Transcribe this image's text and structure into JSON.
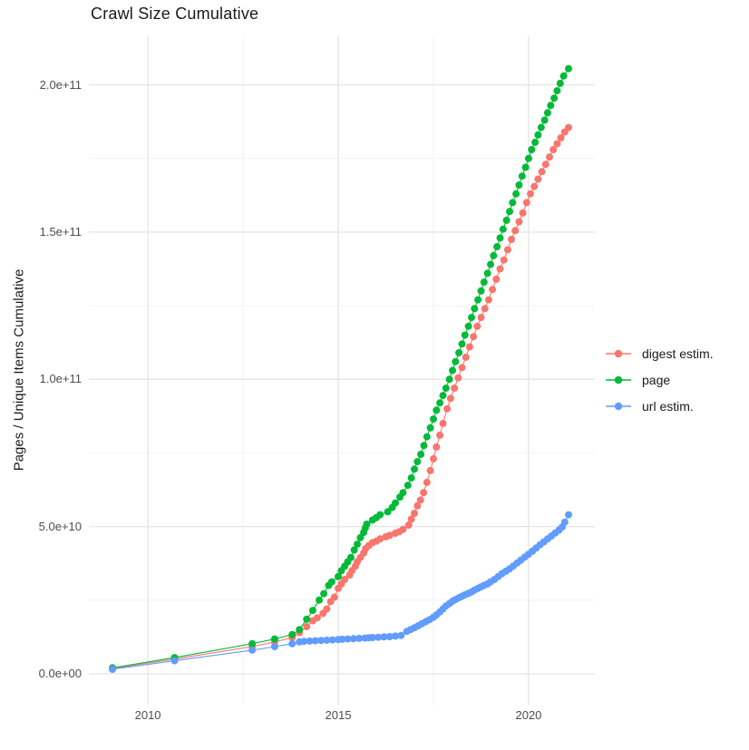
{
  "chart_data": {
    "type": "scatter",
    "title": "Crawl Size Cumulative",
    "xlabel": "",
    "ylabel": "Pages / Unique Items Cumulative",
    "y_unit_multiplier": 10000000000.0,
    "x_domain": [
      2008.45,
      2021.74
    ],
    "y_domain": [
      -1.05,
      21.65
    ],
    "x_ticks": [
      {
        "v": 2010,
        "label": "2010"
      },
      {
        "v": 2015,
        "label": "2015"
      },
      {
        "v": 2020,
        "label": "2020"
      }
    ],
    "x_minor_ticks": [
      2012.5,
      2017.5
    ],
    "y_ticks": [
      {
        "v": 0,
        "label": "0.0e+00"
      },
      {
        "v": 5,
        "label": "5.0e+10"
      },
      {
        "v": 10,
        "label": "1.0e+11"
      },
      {
        "v": 15,
        "label": "1.5e+11"
      },
      {
        "v": 20,
        "label": "2.0e+11"
      }
    ],
    "y_minor_ticks": [
      2.5,
      7.5,
      12.5,
      17.5
    ],
    "grid": {
      "on": true,
      "major_color": "#E6E6E6",
      "minor_color": "#F2F2F2",
      "background": "#FFFFFF"
    },
    "legend_position": "right",
    "series": [
      {
        "name": "digest estim.",
        "color": "#F8766D",
        "points": [
          [
            2009.07,
            0.18
          ],
          [
            2010.7,
            0.5
          ],
          [
            2012.74,
            0.92
          ],
          [
            2013.33,
            1.08
          ],
          [
            2013.79,
            1.23
          ],
          [
            2013.98,
            1.4
          ],
          [
            2014.17,
            1.6
          ],
          [
            2014.33,
            1.8
          ],
          [
            2014.45,
            1.9
          ],
          [
            2014.6,
            2.05
          ],
          [
            2014.7,
            2.2
          ],
          [
            2014.8,
            2.45
          ],
          [
            2014.9,
            2.6
          ],
          [
            2015.0,
            2.9
          ],
          [
            2015.08,
            3.05
          ],
          [
            2015.17,
            3.2
          ],
          [
            2015.3,
            3.35
          ],
          [
            2015.36,
            3.5
          ],
          [
            2015.45,
            3.65
          ],
          [
            2015.5,
            3.8
          ],
          [
            2015.58,
            3.95
          ],
          [
            2015.67,
            4.1
          ],
          [
            2015.72,
            4.25
          ],
          [
            2015.8,
            4.35
          ],
          [
            2015.9,
            4.45
          ],
          [
            2016.0,
            4.5
          ],
          [
            2016.1,
            4.58
          ],
          [
            2016.25,
            4.65
          ],
          [
            2016.35,
            4.7
          ],
          [
            2016.5,
            4.77
          ],
          [
            2016.6,
            4.82
          ],
          [
            2016.7,
            4.9
          ],
          [
            2016.85,
            5.05
          ],
          [
            2016.92,
            5.25
          ],
          [
            2017.0,
            5.45
          ],
          [
            2017.08,
            5.7
          ],
          [
            2017.16,
            5.9
          ],
          [
            2017.24,
            6.15
          ],
          [
            2017.33,
            6.5
          ],
          [
            2017.42,
            6.9
          ],
          [
            2017.5,
            7.3
          ],
          [
            2017.58,
            7.7
          ],
          [
            2017.67,
            8.1
          ],
          [
            2017.75,
            8.5
          ],
          [
            2017.86,
            9.0
          ],
          [
            2017.95,
            9.35
          ],
          [
            2018.05,
            9.7
          ],
          [
            2018.15,
            10.05
          ],
          [
            2018.25,
            10.4
          ],
          [
            2018.35,
            10.75
          ],
          [
            2018.45,
            11.1
          ],
          [
            2018.55,
            11.45
          ],
          [
            2018.65,
            11.8
          ],
          [
            2018.75,
            12.1
          ],
          [
            2018.85,
            12.4
          ],
          [
            2018.95,
            12.7
          ],
          [
            2019.05,
            13.05
          ],
          [
            2019.15,
            13.4
          ],
          [
            2019.25,
            13.75
          ],
          [
            2019.35,
            14.05
          ],
          [
            2019.45,
            14.4
          ],
          [
            2019.55,
            14.75
          ],
          [
            2019.65,
            15.05
          ],
          [
            2019.75,
            15.35
          ],
          [
            2019.85,
            15.65
          ],
          [
            2019.95,
            16.0
          ],
          [
            2020.05,
            16.3
          ],
          [
            2020.15,
            16.55
          ],
          [
            2020.25,
            16.8
          ],
          [
            2020.35,
            17.05
          ],
          [
            2020.45,
            17.3
          ],
          [
            2020.55,
            17.55
          ],
          [
            2020.65,
            17.8
          ],
          [
            2020.75,
            18.0
          ],
          [
            2020.85,
            18.2
          ],
          [
            2020.95,
            18.4
          ],
          [
            2021.05,
            18.55
          ]
        ]
      },
      {
        "name": "page",
        "color": "#00BA38",
        "points": [
          [
            2009.07,
            0.2
          ],
          [
            2010.7,
            0.55
          ],
          [
            2012.74,
            1.02
          ],
          [
            2013.33,
            1.18
          ],
          [
            2013.79,
            1.33
          ],
          [
            2013.98,
            1.5
          ],
          [
            2014.17,
            1.85
          ],
          [
            2014.33,
            2.15
          ],
          [
            2014.5,
            2.5
          ],
          [
            2014.62,
            2.72
          ],
          [
            2014.75,
            3.0
          ],
          [
            2014.83,
            3.12
          ],
          [
            2015.0,
            3.3
          ],
          [
            2015.08,
            3.5
          ],
          [
            2015.17,
            3.65
          ],
          [
            2015.25,
            3.8
          ],
          [
            2015.33,
            3.95
          ],
          [
            2015.42,
            4.2
          ],
          [
            2015.5,
            4.4
          ],
          [
            2015.58,
            4.62
          ],
          [
            2015.67,
            4.8
          ],
          [
            2015.71,
            4.95
          ],
          [
            2015.75,
            5.08
          ],
          [
            2015.9,
            5.22
          ],
          [
            2016.0,
            5.3
          ],
          [
            2016.1,
            5.4
          ],
          [
            2016.3,
            5.5
          ],
          [
            2016.42,
            5.65
          ],
          [
            2016.5,
            5.8
          ],
          [
            2016.62,
            6.0
          ],
          [
            2016.7,
            6.15
          ],
          [
            2016.83,
            6.4
          ],
          [
            2016.92,
            6.65
          ],
          [
            2017.0,
            6.95
          ],
          [
            2017.08,
            7.2
          ],
          [
            2017.17,
            7.45
          ],
          [
            2017.25,
            7.75
          ],
          [
            2017.33,
            8.05
          ],
          [
            2017.42,
            8.35
          ],
          [
            2017.5,
            8.65
          ],
          [
            2017.58,
            8.95
          ],
          [
            2017.67,
            9.2
          ],
          [
            2017.75,
            9.45
          ],
          [
            2017.83,
            9.7
          ],
          [
            2017.92,
            10.0
          ],
          [
            2018.0,
            10.3
          ],
          [
            2018.08,
            10.6
          ],
          [
            2018.17,
            10.9
          ],
          [
            2018.25,
            11.2
          ],
          [
            2018.33,
            11.5
          ],
          [
            2018.42,
            11.8
          ],
          [
            2018.5,
            12.1
          ],
          [
            2018.58,
            12.4
          ],
          [
            2018.67,
            12.7
          ],
          [
            2018.75,
            13.0
          ],
          [
            2018.83,
            13.3
          ],
          [
            2018.92,
            13.6
          ],
          [
            2019.0,
            13.9
          ],
          [
            2019.08,
            14.2
          ],
          [
            2019.17,
            14.5
          ],
          [
            2019.25,
            14.8
          ],
          [
            2019.33,
            15.1
          ],
          [
            2019.42,
            15.4
          ],
          [
            2019.5,
            15.7
          ],
          [
            2019.58,
            16.0
          ],
          [
            2019.67,
            16.3
          ],
          [
            2019.75,
            16.6
          ],
          [
            2019.83,
            16.9
          ],
          [
            2019.92,
            17.2
          ],
          [
            2020.0,
            17.5
          ],
          [
            2020.08,
            17.8
          ],
          [
            2020.17,
            18.05
          ],
          [
            2020.25,
            18.3
          ],
          [
            2020.33,
            18.55
          ],
          [
            2020.42,
            18.8
          ],
          [
            2020.5,
            19.05
          ],
          [
            2020.58,
            19.3
          ],
          [
            2020.67,
            19.55
          ],
          [
            2020.75,
            19.8
          ],
          [
            2020.83,
            20.05
          ],
          [
            2020.92,
            20.3
          ],
          [
            2021.05,
            20.55
          ]
        ]
      },
      {
        "name": "url estim.",
        "color": "#619CFF",
        "points": [
          [
            2009.07,
            0.15
          ],
          [
            2010.7,
            0.44
          ],
          [
            2012.74,
            0.8
          ],
          [
            2013.33,
            0.92
          ],
          [
            2013.79,
            1.02
          ],
          [
            2013.98,
            1.08
          ],
          [
            2014.1,
            1.1
          ],
          [
            2014.25,
            1.11
          ],
          [
            2014.4,
            1.12
          ],
          [
            2014.55,
            1.13
          ],
          [
            2014.7,
            1.14
          ],
          [
            2014.85,
            1.15
          ],
          [
            2015.0,
            1.16
          ],
          [
            2015.1,
            1.17
          ],
          [
            2015.25,
            1.18
          ],
          [
            2015.4,
            1.19
          ],
          [
            2015.55,
            1.2
          ],
          [
            2015.7,
            1.21
          ],
          [
            2015.8,
            1.22
          ],
          [
            2015.9,
            1.23
          ],
          [
            2016.05,
            1.24
          ],
          [
            2016.2,
            1.25
          ],
          [
            2016.35,
            1.26
          ],
          [
            2016.5,
            1.28
          ],
          [
            2016.65,
            1.3
          ],
          [
            2016.8,
            1.44
          ],
          [
            2016.9,
            1.5
          ],
          [
            2017.0,
            1.56
          ],
          [
            2017.1,
            1.63
          ],
          [
            2017.2,
            1.7
          ],
          [
            2017.3,
            1.77
          ],
          [
            2017.4,
            1.84
          ],
          [
            2017.5,
            1.92
          ],
          [
            2017.58,
            2.0
          ],
          [
            2017.67,
            2.1
          ],
          [
            2017.75,
            2.2
          ],
          [
            2017.83,
            2.3
          ],
          [
            2017.92,
            2.38
          ],
          [
            2018.0,
            2.46
          ],
          [
            2018.08,
            2.52
          ],
          [
            2018.17,
            2.58
          ],
          [
            2018.25,
            2.63
          ],
          [
            2018.33,
            2.68
          ],
          [
            2018.42,
            2.73
          ],
          [
            2018.5,
            2.78
          ],
          [
            2018.58,
            2.84
          ],
          [
            2018.67,
            2.9
          ],
          [
            2018.75,
            2.95
          ],
          [
            2018.83,
            3.0
          ],
          [
            2018.92,
            3.05
          ],
          [
            2019.0,
            3.12
          ],
          [
            2019.1,
            3.2
          ],
          [
            2019.2,
            3.3
          ],
          [
            2019.3,
            3.4
          ],
          [
            2019.4,
            3.48
          ],
          [
            2019.5,
            3.56
          ],
          [
            2019.6,
            3.66
          ],
          [
            2019.7,
            3.76
          ],
          [
            2019.8,
            3.86
          ],
          [
            2019.9,
            3.96
          ],
          [
            2020.0,
            4.06
          ],
          [
            2020.1,
            4.16
          ],
          [
            2020.2,
            4.27
          ],
          [
            2020.3,
            4.38
          ],
          [
            2020.4,
            4.48
          ],
          [
            2020.5,
            4.58
          ],
          [
            2020.6,
            4.68
          ],
          [
            2020.7,
            4.78
          ],
          [
            2020.8,
            4.88
          ],
          [
            2020.88,
            4.98
          ],
          [
            2020.95,
            5.15
          ],
          [
            2021.05,
            5.4
          ]
        ]
      }
    ]
  }
}
